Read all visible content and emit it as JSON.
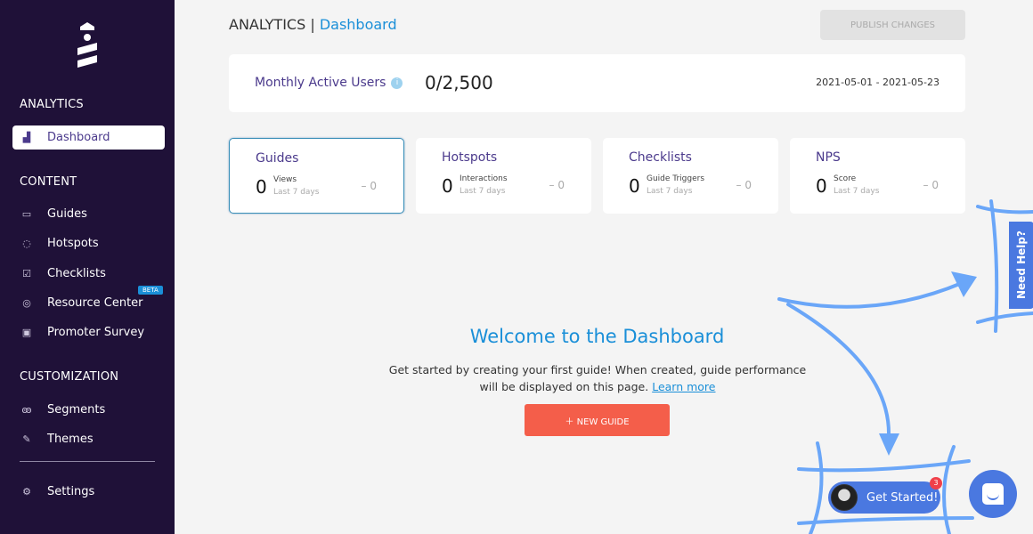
{
  "sidebar": {
    "sections": {
      "analytics": "ANALYTICS",
      "content": "CONTENT",
      "customization": "CUSTOMIZATION"
    },
    "items": [
      {
        "label": "Dashboard",
        "icon": "bar-chart-icon"
      },
      {
        "label": "Guides",
        "icon": "message-icon"
      },
      {
        "label": "Hotspots",
        "icon": "target-icon"
      },
      {
        "label": "Checklists",
        "icon": "checkbox-icon"
      },
      {
        "label": "Resource Center",
        "icon": "lifebuoy-icon"
      },
      {
        "label": "Promoter Survey",
        "icon": "survey-icon"
      },
      {
        "label": "Segments",
        "icon": "users-icon"
      },
      {
        "label": "Themes",
        "icon": "brush-icon"
      },
      {
        "label": "Settings",
        "icon": "gear-icon"
      }
    ],
    "beta_badge": "BETA"
  },
  "header": {
    "section": "ANALYTICS |",
    "page": "Dashboard",
    "publish_label": "PUBLISH CHANGES"
  },
  "mau": {
    "label": "Monthly Active Users",
    "value": "0/2,500",
    "date_range": "2021-05-01 - 2021-05-23"
  },
  "stats": [
    {
      "title": "Guides",
      "value": "0",
      "metric": "Views",
      "period": "Last 7 days",
      "delta": "– 0"
    },
    {
      "title": "Hotspots",
      "value": "0",
      "metric": "Interactions",
      "period": "Last 7 days",
      "delta": "– 0"
    },
    {
      "title": "Checklists",
      "value": "0",
      "metric": "Guide Triggers",
      "period": "Last 7 days",
      "delta": "– 0"
    },
    {
      "title": "NPS",
      "value": "0",
      "metric": "Score",
      "period": "Last 7 days",
      "delta": "– 0"
    }
  ],
  "welcome": {
    "title": "Welcome to the Dashboard",
    "text": "Get started by creating your first guide! When created, guide performance will be displayed on this page.",
    "link": "Learn more",
    "button": "NEW GUIDE"
  },
  "widgets": {
    "need_help": "Need Help?",
    "get_started": "Get Started!",
    "badge_count": "3"
  },
  "colors": {
    "sidebar": "#1f1138",
    "accent": "#1a8fd8",
    "primary_button": "#f45e4a",
    "widget": "#4a78e0",
    "annotation": "#6aa6f8"
  }
}
